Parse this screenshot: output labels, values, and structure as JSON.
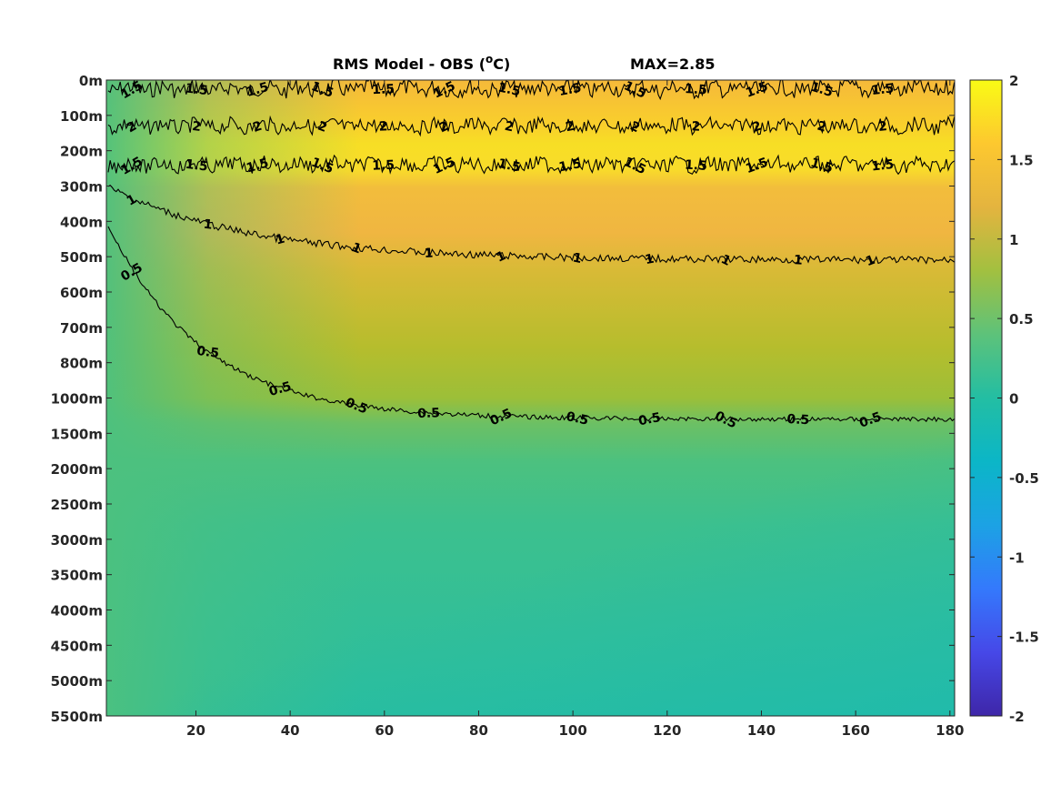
{
  "chart_data": {
    "type": "heatmap",
    "title": "RMS Model - OBS (",
    "title_superscript": "o",
    "title_unit": "C)",
    "max_label": "MAX=2.85",
    "xlabel": "",
    "ylabel": "",
    "x_range": [
      1,
      181
    ],
    "x_ticks": [
      20,
      40,
      60,
      80,
      100,
      120,
      140,
      160,
      180
    ],
    "y_tick_labels": [
      "0m",
      "100m",
      "200m",
      "300m",
      "400m",
      "500m",
      "600m",
      "700m",
      "800m",
      "1000m",
      "1500m",
      "2000m",
      "2500m",
      "3000m",
      "3500m",
      "4000m",
      "4500m",
      "5000m",
      "5500m"
    ],
    "colorbar": {
      "range": [
        -2,
        2
      ],
      "ticks": [
        2,
        1.5,
        1,
        0.5,
        0,
        -0.5,
        -1,
        -1.5,
        -2
      ],
      "tick_labels": [
        "2",
        "1.5",
        "1",
        "0.5",
        "0",
        "-0.5",
        "-1",
        "-1.5",
        "-2"
      ],
      "colormap": "parula"
    },
    "value_field": {
      "surface_0_100m": 1.5,
      "band_100_200m": 2.0,
      "layer_300_500m": 1.2,
      "layer_500_1000m": 0.9,
      "deep_below_1500m": 0.3,
      "deep_bottom_left": 0.2
    },
    "contours": [
      {
        "level": 1.5,
        "label": "1.5",
        "depth_index": 0.25
      },
      {
        "level": 2,
        "label": "2",
        "depth_index": 1.3
      },
      {
        "level": 1.5,
        "label": "1.5",
        "depth_index": 2.4
      },
      {
        "level": 1,
        "label": "1",
        "depth_index_start": 3.0,
        "depth_index_end": 5.1
      },
      {
        "level": 0.5,
        "label": "0.5",
        "depth_index_start": 4.0,
        "depth_index_end": 9.6
      }
    ],
    "grid": false,
    "legend": "none"
  }
}
